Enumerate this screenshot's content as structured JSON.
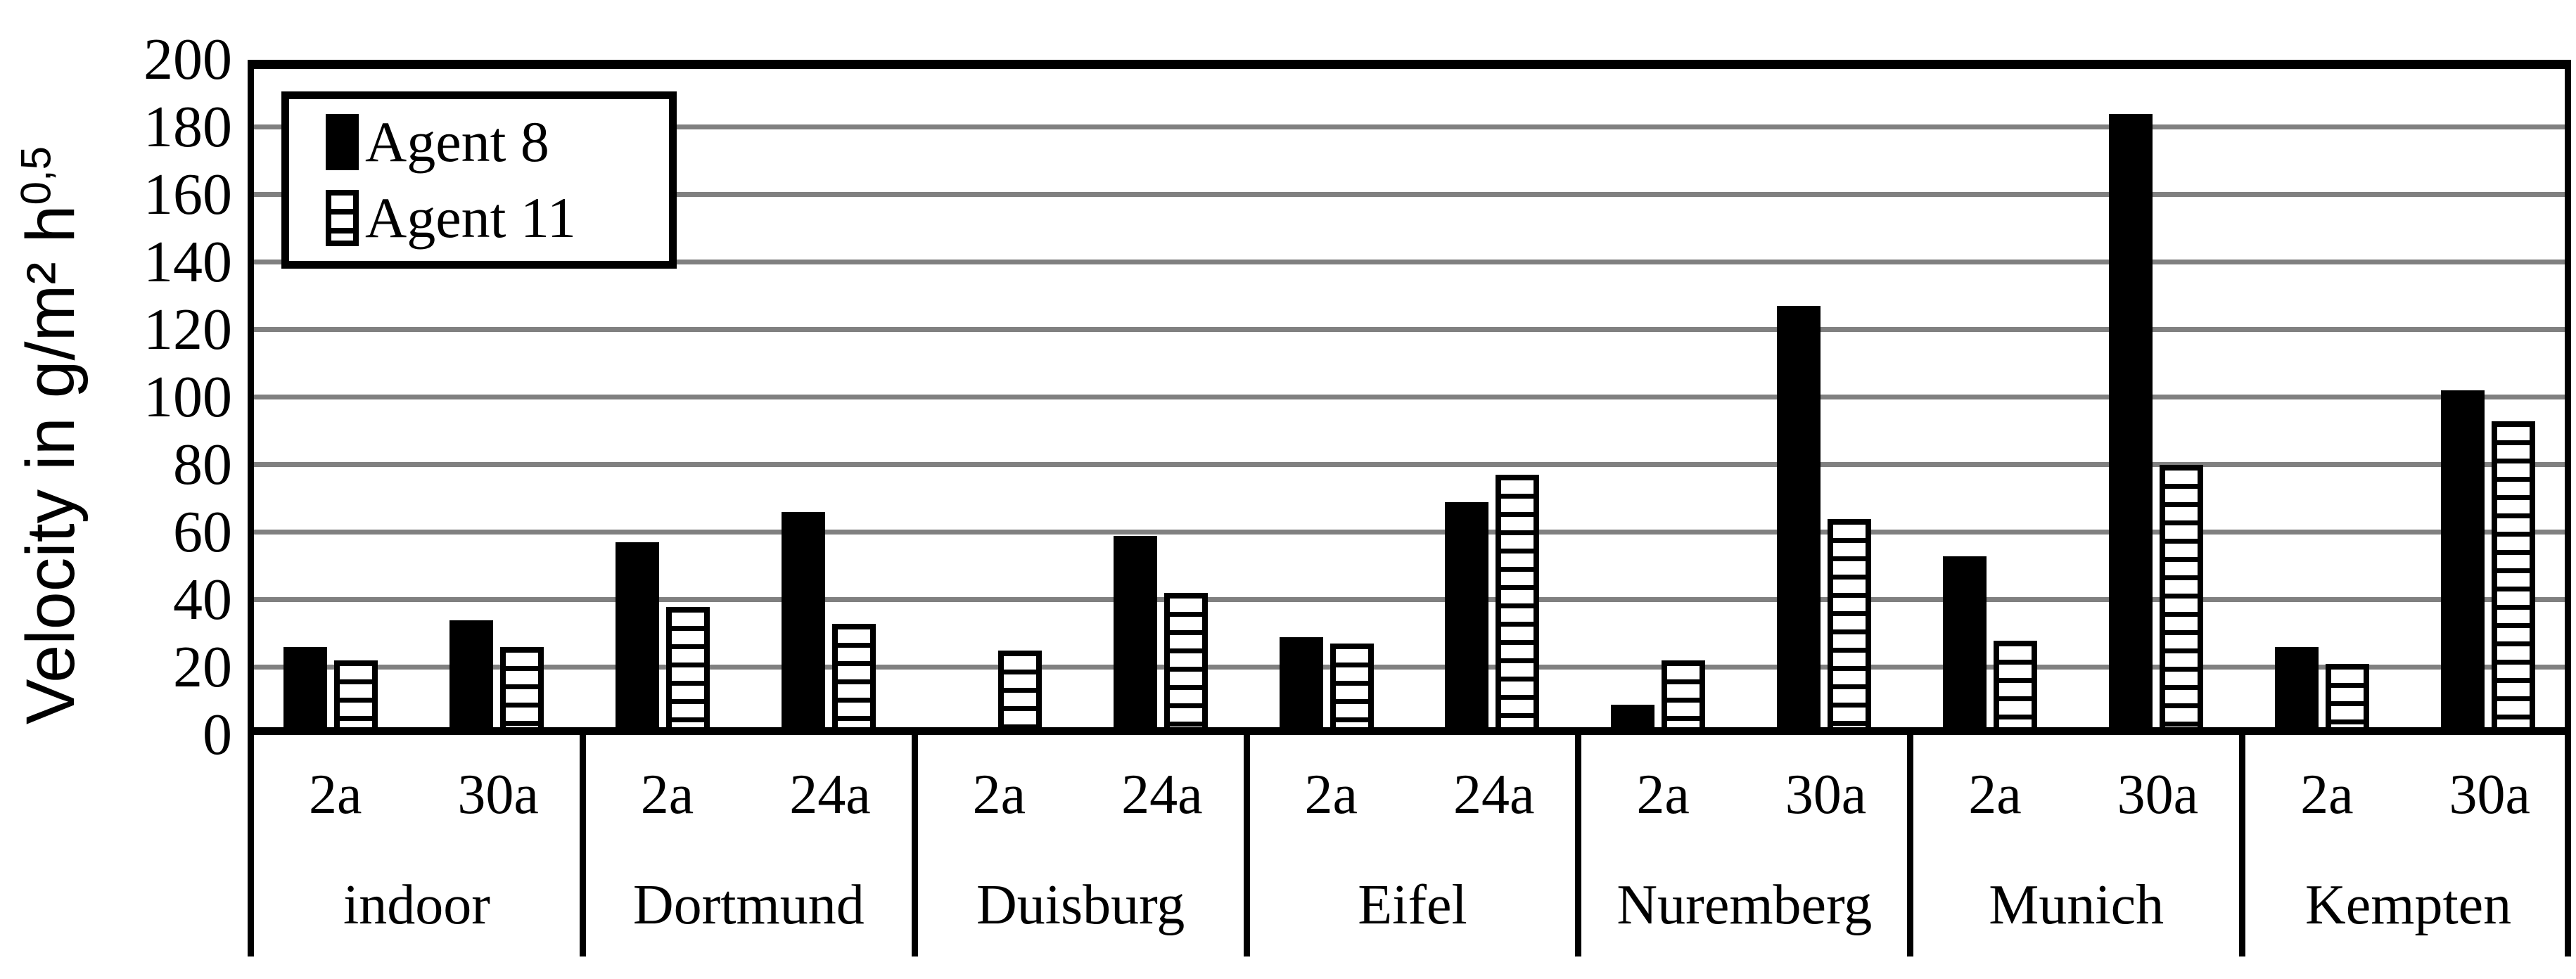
{
  "chart_data": {
    "type": "bar",
    "title": "",
    "ylabel": "Velocity in g/m² h0,5",
    "ylabel_base": "Velocity in g/m² h",
    "ylabel_sup": "0,5",
    "xlabel": "",
    "ylim": [
      0,
      200
    ],
    "ytick_step": 20,
    "yticks": [
      0,
      20,
      40,
      60,
      80,
      100,
      120,
      140,
      160,
      180,
      200
    ],
    "grid": "horizontal-gray-lines",
    "legend_position": "top-left-inside",
    "colors": {
      "agent8_fill": "#000000",
      "agent11_fill": "#ffffff",
      "agent11_stripe": "#000000",
      "gridline": "#808080",
      "axis": "#000000",
      "background": "#ffffff"
    },
    "series": [
      {
        "name": "Agent 8",
        "style": "solid-black",
        "values": [
          26,
          34,
          57,
          66,
          null,
          59,
          29,
          69,
          9,
          127,
          53,
          184,
          26,
          102
        ]
      },
      {
        "name": "Agent 11",
        "style": "white-with-horizontal-stripes",
        "values": [
          22,
          26,
          38,
          33,
          25,
          42,
          27,
          77,
          22,
          64,
          28,
          80,
          21,
          93
        ]
      }
    ],
    "categories": [
      "indoor 2a",
      "indoor 30a",
      "Dortmund 2a",
      "Dortmund 24a",
      "Duisburg 2a",
      "Duisburg 24a",
      "Eifel 2a",
      "Eifel 24a",
      "Nuremberg 2a",
      "Nuremberg 30a",
      "Munich 2a",
      "Munich 30a",
      "Kempten 2a",
      "Kempten 30a"
    ],
    "groups": [
      {
        "name": "indoor",
        "cells": [
          {
            "label": "2a",
            "agent8": 26,
            "agent11": 22
          },
          {
            "label": "30a",
            "agent8": 34,
            "agent11": 26
          }
        ]
      },
      {
        "name": "Dortmund",
        "cells": [
          {
            "label": "2a",
            "agent8": 57,
            "agent11": 38
          },
          {
            "label": "24a",
            "agent8": 66,
            "agent11": 33
          }
        ]
      },
      {
        "name": "Duisburg",
        "cells": [
          {
            "label": "2a",
            "agent8": null,
            "agent11": 25
          },
          {
            "label": "24a",
            "agent8": 59,
            "agent11": 42
          }
        ]
      },
      {
        "name": "Eifel",
        "cells": [
          {
            "label": "2a",
            "agent8": 29,
            "agent11": 27
          },
          {
            "label": "24a",
            "agent8": 69,
            "agent11": 77
          }
        ]
      },
      {
        "name": "Nuremberg",
        "cells": [
          {
            "label": "2a",
            "agent8": 9,
            "agent11": 22
          },
          {
            "label": "30a",
            "agent8": 127,
            "agent11": 64
          }
        ]
      },
      {
        "name": "Munich",
        "cells": [
          {
            "label": "2a",
            "agent8": 53,
            "agent11": 28
          },
          {
            "label": "30a",
            "agent8": 184,
            "agent11": 80
          }
        ]
      },
      {
        "name": "Kempten",
        "cells": [
          {
            "label": "2a",
            "agent8": 26,
            "agent11": 21
          },
          {
            "label": "30a",
            "agent8": 102,
            "agent11": 93
          }
        ]
      }
    ]
  }
}
